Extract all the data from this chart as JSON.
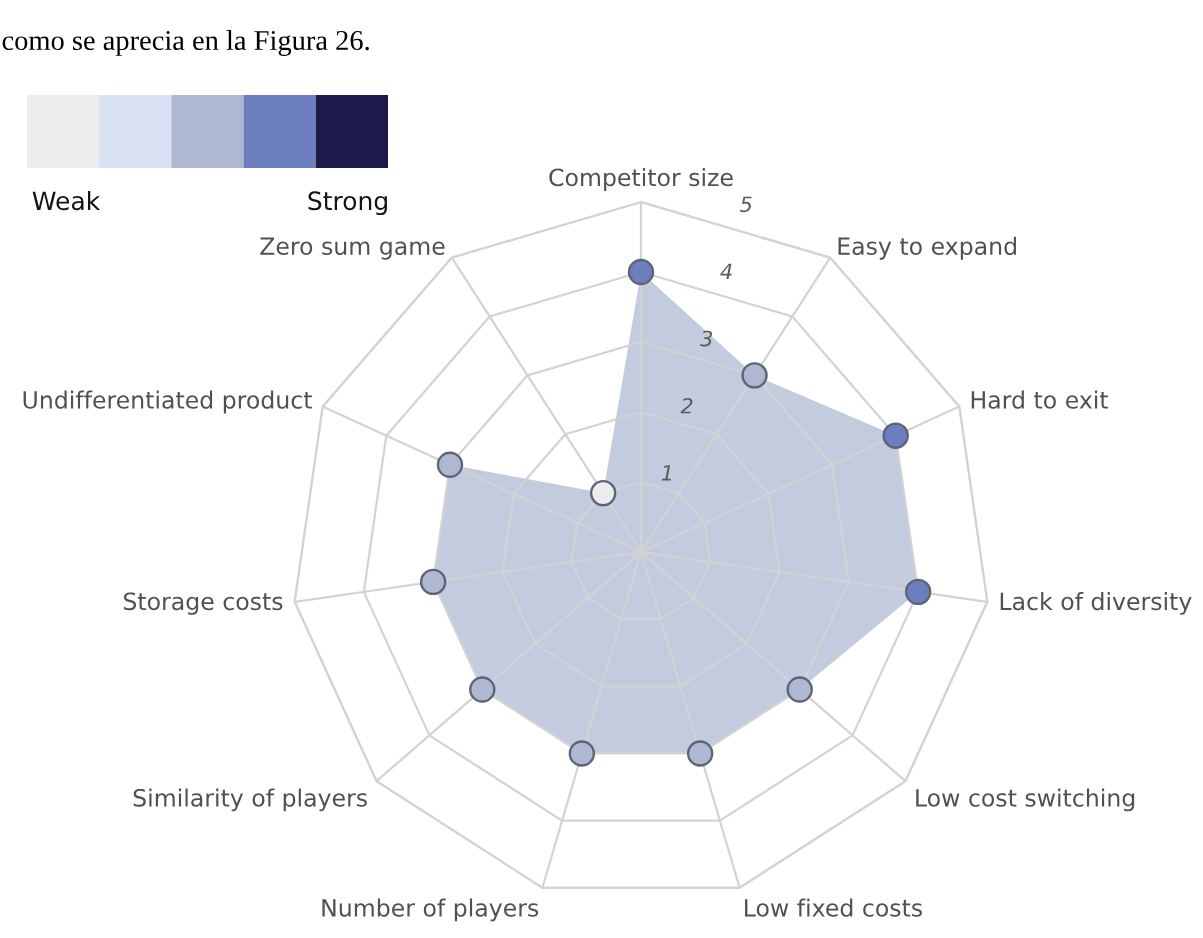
{
  "chart_data": {
    "type": "radar",
    "annotations": [
      "como se aprecia en la Figura 26.",
      "Weak",
      "Strong"
    ],
    "categories": [
      "Competitor size",
      "Easy to expand",
      "Hard to exit",
      "Lack of diversity",
      "Low cost switching",
      "Low fixed costs",
      "Number of players",
      "Similarity of players",
      "Storage costs",
      "Undifferentiated product",
      "Zero sum game"
    ],
    "series": [
      {
        "color": "#c3cbdf",
        "values": [
          4,
          3,
          4,
          4,
          3,
          3,
          3,
          3,
          3,
          3,
          1
        ],
        "colors": [
          "#6b7ebe",
          "#aeb8d1",
          "#6b7ebe",
          "#6b7ebe",
          "#aeb8d1",
          "#aeb8d1",
          "#aeb8d1",
          "#aeb8d1",
          "#aeb8d1",
          "#aeb8d1",
          "#ececec"
        ]
      }
    ],
    "ylim": [
      0,
      5
    ],
    "yticks": [
      1,
      2,
      3,
      4,
      5
    ],
    "marker": "circle",
    "grid": true
  }
}
